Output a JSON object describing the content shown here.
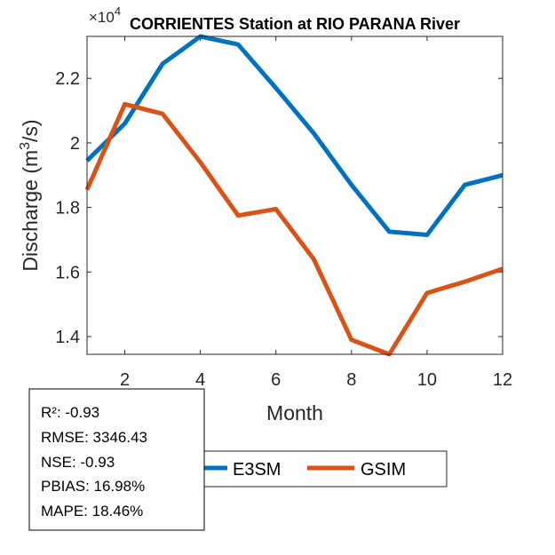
{
  "chart_data": {
    "type": "line",
    "title": "CORRIENTES  Station at  RIO PARANA  River",
    "xlabel": "Month",
    "ylabel": "Discharge (m³/s)",
    "ylabel_base": "Discharge (m",
    "ylabel_sup": "3",
    "ylabel_tail": "/s)",
    "y_exponent_label": "×10",
    "y_exponent": "4",
    "xlim": [
      1,
      12
    ],
    "ylim": [
      1.345,
      2.33
    ],
    "xticks": [
      2,
      4,
      6,
      8,
      10,
      12
    ],
    "yticks": [
      1.4,
      1.6,
      1.8,
      2,
      2.2
    ],
    "ytick_labels": [
      "1.4",
      "1.6",
      "1.8",
      "2",
      "2.2"
    ],
    "x": [
      1,
      2,
      3,
      4,
      5,
      6,
      7,
      8,
      9,
      10,
      11,
      12
    ],
    "series": [
      {
        "name": "E3SM",
        "color": "#0072BD",
        "values": [
          1.945,
          2.06,
          2.245,
          2.33,
          2.305,
          2.17,
          2.03,
          1.87,
          1.725,
          1.715,
          1.87,
          1.9
        ]
      },
      {
        "name": "GSIM",
        "color": "#D95319",
        "values": [
          1.855,
          2.12,
          2.09,
          1.94,
          1.775,
          1.795,
          1.64,
          1.39,
          1.345,
          1.535,
          1.57,
          1.61
        ]
      }
    ],
    "legend_position": "bottom-center",
    "grid": false
  },
  "stats": [
    "R²: -0.93",
    "RMSE: 3346.43",
    "NSE: -0.93",
    "PBIAS: 16.98%",
    "MAPE: 18.46%"
  ]
}
